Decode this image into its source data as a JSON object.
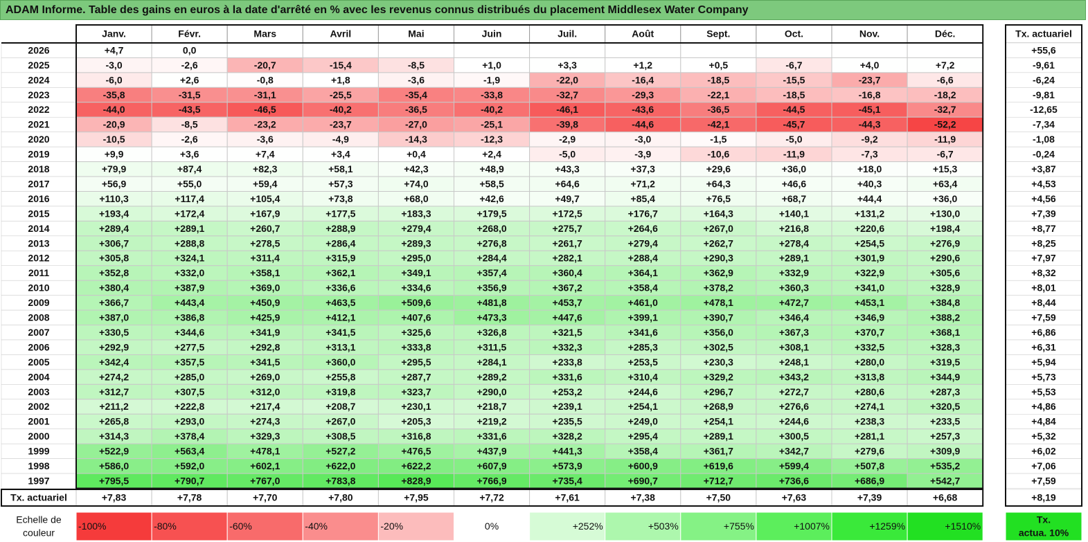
{
  "title": "ADAM Informe. Table des gains en euros à la date d'arrêté en % avec les revenus connus distribués du placement Middlesex Water Company",
  "chart_data": {
    "type": "table",
    "months": [
      "Janv.",
      "Févr.",
      "Mars",
      "Avril",
      "Mai",
      "Juin",
      "Juil.",
      "Août",
      "Sept.",
      "Oct.",
      "Nov.",
      "Déc."
    ],
    "annual_header": "Tx. actuariel",
    "rows": [
      {
        "year": "2026",
        "values": [
          "+4,7",
          "0,0",
          "",
          "",
          "",
          "",
          "",
          "",
          "",
          "",
          "",
          ""
        ],
        "annual": "+55,6"
      },
      {
        "year": "2025",
        "values": [
          "-3,0",
          "-2,6",
          "-20,7",
          "-15,4",
          "-8,5",
          "+1,0",
          "+3,3",
          "+1,2",
          "+0,5",
          "-6,7",
          "+4,0",
          "+7,2"
        ],
        "annual": "-9,61"
      },
      {
        "year": "2024",
        "values": [
          "-6,0",
          "+2,6",
          "-0,8",
          "+1,8",
          "-3,6",
          "-1,9",
          "-22,0",
          "-16,4",
          "-18,5",
          "-15,5",
          "-23,7",
          "-6,6"
        ],
        "annual": "-6,24"
      },
      {
        "year": "2023",
        "values": [
          "-35,8",
          "-31,5",
          "-31,1",
          "-25,5",
          "-35,4",
          "-33,8",
          "-32,7",
          "-29,3",
          "-22,1",
          "-18,5",
          "-16,8",
          "-18,2"
        ],
        "annual": "-9,81"
      },
      {
        "year": "2022",
        "values": [
          "-44,0",
          "-43,5",
          "-46,5",
          "-40,2",
          "-36,5",
          "-40,2",
          "-46,1",
          "-43,6",
          "-36,5",
          "-44,5",
          "-45,1",
          "-32,7"
        ],
        "annual": "-12,65"
      },
      {
        "year": "2021",
        "values": [
          "-20,9",
          "-8,5",
          "-23,2",
          "-23,7",
          "-27,0",
          "-25,1",
          "-39,8",
          "-44,6",
          "-42,1",
          "-45,7",
          "-44,3",
          "-52,2"
        ],
        "annual": "-7,34"
      },
      {
        "year": "2020",
        "values": [
          "-10,5",
          "-2,6",
          "-3,6",
          "-4,9",
          "-14,3",
          "-12,3",
          "-2,9",
          "-3,0",
          "-1,5",
          "-5,0",
          "-9,2",
          "-11,9"
        ],
        "annual": "-1,08"
      },
      {
        "year": "2019",
        "values": [
          "+9,9",
          "+3,6",
          "+7,4",
          "+3,4",
          "+0,4",
          "+2,4",
          "-5,0",
          "-3,9",
          "-10,6",
          "-11,9",
          "-7,3",
          "-6,7"
        ],
        "annual": "-0,24"
      },
      {
        "year": "2018",
        "values": [
          "+79,9",
          "+87,4",
          "+82,3",
          "+58,1",
          "+42,3",
          "+48,9",
          "+43,3",
          "+37,3",
          "+29,6",
          "+36,0",
          "+18,0",
          "+15,3"
        ],
        "annual": "+3,87"
      },
      {
        "year": "2017",
        "values": [
          "+56,9",
          "+55,0",
          "+59,4",
          "+57,3",
          "+74,0",
          "+58,5",
          "+64,6",
          "+71,2",
          "+64,3",
          "+46,6",
          "+40,3",
          "+63,4"
        ],
        "annual": "+4,53"
      },
      {
        "year": "2016",
        "values": [
          "+110,3",
          "+117,4",
          "+105,4",
          "+73,8",
          "+68,0",
          "+42,6",
          "+49,7",
          "+85,4",
          "+76,5",
          "+68,7",
          "+44,4",
          "+36,0"
        ],
        "annual": "+4,56"
      },
      {
        "year": "2015",
        "values": [
          "+193,4",
          "+172,4",
          "+167,9",
          "+177,5",
          "+183,3",
          "+179,5",
          "+172,5",
          "+176,7",
          "+164,3",
          "+140,1",
          "+131,2",
          "+130,0"
        ],
        "annual": "+7,39"
      },
      {
        "year": "2014",
        "values": [
          "+289,4",
          "+289,1",
          "+260,7",
          "+288,9",
          "+279,4",
          "+268,0",
          "+275,7",
          "+264,6",
          "+267,0",
          "+216,8",
          "+220,6",
          "+198,4"
        ],
        "annual": "+8,77"
      },
      {
        "year": "2013",
        "values": [
          "+306,7",
          "+288,8",
          "+278,5",
          "+286,4",
          "+289,3",
          "+276,8",
          "+261,7",
          "+279,4",
          "+262,7",
          "+278,4",
          "+254,5",
          "+276,9"
        ],
        "annual": "+8,25"
      },
      {
        "year": "2012",
        "values": [
          "+305,8",
          "+324,1",
          "+311,4",
          "+315,9",
          "+295,0",
          "+284,4",
          "+282,1",
          "+288,4",
          "+290,3",
          "+289,1",
          "+301,9",
          "+290,6"
        ],
        "annual": "+7,97"
      },
      {
        "year": "2011",
        "values": [
          "+352,8",
          "+332,0",
          "+358,1",
          "+362,1",
          "+349,1",
          "+357,4",
          "+360,4",
          "+364,1",
          "+362,9",
          "+332,9",
          "+322,9",
          "+305,6"
        ],
        "annual": "+8,32"
      },
      {
        "year": "2010",
        "values": [
          "+380,4",
          "+387,9",
          "+369,0",
          "+336,6",
          "+334,6",
          "+356,9",
          "+367,2",
          "+358,4",
          "+378,2",
          "+360,3",
          "+341,0",
          "+328,9"
        ],
        "annual": "+8,01"
      },
      {
        "year": "2009",
        "values": [
          "+366,7",
          "+443,4",
          "+450,9",
          "+463,5",
          "+509,6",
          "+481,8",
          "+453,7",
          "+461,0",
          "+478,1",
          "+472,7",
          "+453,1",
          "+384,8"
        ],
        "annual": "+8,44"
      },
      {
        "year": "2008",
        "values": [
          "+387,0",
          "+386,8",
          "+425,9",
          "+412,1",
          "+407,6",
          "+473,3",
          "+447,6",
          "+399,1",
          "+390,7",
          "+346,4",
          "+346,9",
          "+388,2"
        ],
        "annual": "+7,59"
      },
      {
        "year": "2007",
        "values": [
          "+330,5",
          "+344,6",
          "+341,9",
          "+341,5",
          "+325,6",
          "+326,8",
          "+321,5",
          "+341,6",
          "+356,0",
          "+367,3",
          "+370,7",
          "+368,1"
        ],
        "annual": "+6,86"
      },
      {
        "year": "2006",
        "values": [
          "+292,9",
          "+277,5",
          "+292,8",
          "+313,1",
          "+333,8",
          "+311,5",
          "+332,3",
          "+285,3",
          "+302,5",
          "+308,1",
          "+332,5",
          "+328,3"
        ],
        "annual": "+6,31"
      },
      {
        "year": "2005",
        "values": [
          "+342,4",
          "+357,5",
          "+341,5",
          "+360,0",
          "+295,5",
          "+284,1",
          "+233,8",
          "+253,5",
          "+230,3",
          "+248,1",
          "+280,0",
          "+319,5"
        ],
        "annual": "+5,94"
      },
      {
        "year": "2004",
        "values": [
          "+274,2",
          "+285,0",
          "+269,0",
          "+255,8",
          "+287,7",
          "+289,2",
          "+331,6",
          "+310,4",
          "+329,2",
          "+343,2",
          "+313,8",
          "+344,9"
        ],
        "annual": "+5,73"
      },
      {
        "year": "2003",
        "values": [
          "+312,7",
          "+307,5",
          "+312,0",
          "+319,8",
          "+323,7",
          "+290,0",
          "+253,2",
          "+244,6",
          "+296,7",
          "+272,7",
          "+280,6",
          "+287,3"
        ],
        "annual": "+5,53"
      },
      {
        "year": "2002",
        "values": [
          "+211,2",
          "+222,8",
          "+217,4",
          "+208,7",
          "+230,1",
          "+218,7",
          "+239,1",
          "+254,1",
          "+268,9",
          "+276,6",
          "+274,1",
          "+320,5"
        ],
        "annual": "+4,86"
      },
      {
        "year": "2001",
        "values": [
          "+265,8",
          "+293,0",
          "+274,3",
          "+267,0",
          "+205,3",
          "+219,2",
          "+235,5",
          "+249,0",
          "+254,1",
          "+244,6",
          "+238,3",
          "+233,5"
        ],
        "annual": "+4,84"
      },
      {
        "year": "2000",
        "values": [
          "+314,3",
          "+378,4",
          "+329,3",
          "+308,5",
          "+316,8",
          "+331,6",
          "+328,2",
          "+295,4",
          "+289,1",
          "+300,5",
          "+281,1",
          "+257,3"
        ],
        "annual": "+5,32"
      },
      {
        "year": "1999",
        "values": [
          "+522,9",
          "+563,4",
          "+478,1",
          "+527,2",
          "+476,5",
          "+437,9",
          "+441,3",
          "+358,4",
          "+361,7",
          "+342,7",
          "+279,6",
          "+309,9"
        ],
        "annual": "+6,02"
      },
      {
        "year": "1998",
        "values": [
          "+586,0",
          "+592,0",
          "+602,1",
          "+622,0",
          "+622,2",
          "+607,9",
          "+573,9",
          "+600,9",
          "+619,6",
          "+599,4",
          "+507,8",
          "+535,2"
        ],
        "annual": "+7,06"
      },
      {
        "year": "1997",
        "values": [
          "+795,5",
          "+790,7",
          "+767,0",
          "+783,8",
          "+828,9",
          "+766,9",
          "+735,4",
          "+690,7",
          "+712,7",
          "+736,6",
          "+686,9",
          "+542,7"
        ],
        "annual": "+7,59"
      }
    ],
    "footer": {
      "label": "Tx. actuariel",
      "values": [
        "+7,83",
        "+7,78",
        "+7,70",
        "+7,80",
        "+7,95",
        "+7,72",
        "+7,61",
        "+7,38",
        "+7,50",
        "+7,63",
        "+7,39",
        "+6,68"
      ],
      "annual": "+8,19"
    },
    "color_scale": {
      "label_line1": "Echelle de",
      "label_line2": "couleur",
      "steps": [
        {
          "label": "-100%",
          "color": "#f53b3b"
        },
        {
          "label": "-80%",
          "color": "#f75151"
        },
        {
          "label": "-60%",
          "color": "#f86b6b"
        },
        {
          "label": "-40%",
          "color": "#fa8d8d"
        },
        {
          "label": "-20%",
          "color": "#fcbcbc"
        },
        {
          "label": "0%",
          "color": "#ffffff"
        },
        {
          "label": "+252%",
          "color": "#d6fbd6"
        },
        {
          "label": "+503%",
          "color": "#adf7ad"
        },
        {
          "label": "+755%",
          "color": "#85f285"
        },
        {
          "label": "+1007%",
          "color": "#5cee5c"
        },
        {
          "label": "+1259%",
          "color": "#3ae93a"
        },
        {
          "label": "+1510%",
          "color": "#22e022"
        }
      ],
      "legend_box_line1": "Tx.",
      "legend_box_line2": "actua. 10%",
      "legend_box_color": "#22e022"
    },
    "colors": {
      "title_bg": "#7dc97d",
      "negative_max": "#f53b3b",
      "positive_max": "#22e022",
      "neutral": "#ffffff"
    }
  }
}
